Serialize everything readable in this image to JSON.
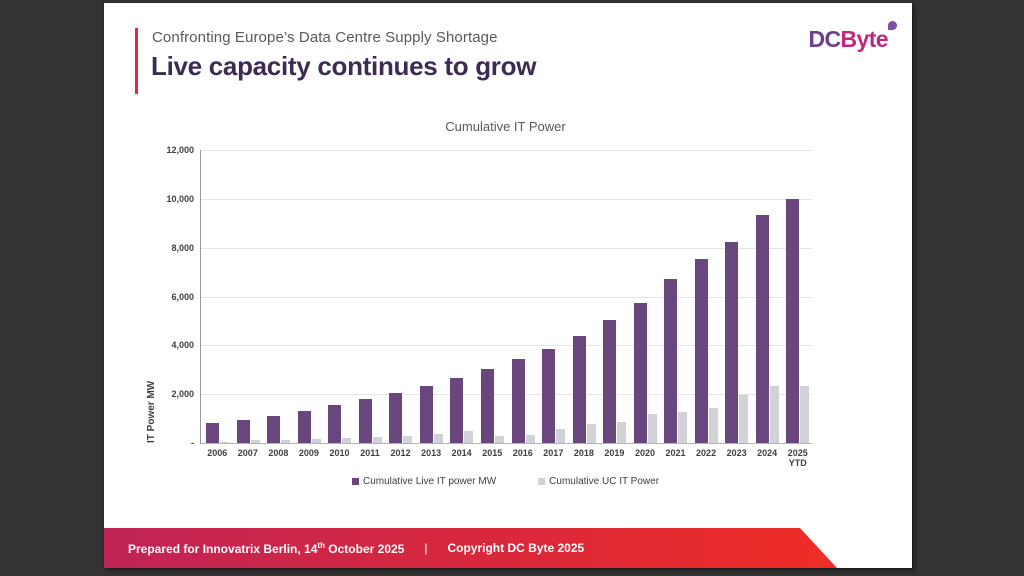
{
  "page": {
    "background": "#333333"
  },
  "header": {
    "eyebrow": "Confronting Europe’s Data Centre Supply Shortage",
    "title": "Live capacity continues to grow",
    "accent_color": "#EE2146"
  },
  "logo": {
    "part1": "DC",
    "part2": "Byte",
    "part1_color": "#6B3F92",
    "part2_color": "#C22780",
    "leaf_color": "#7E4FA0"
  },
  "chart_data": {
    "type": "bar",
    "title": "Cumulative IT Power",
    "xlabel": "",
    "ylabel": "IT Power MW",
    "ylim": [
      0,
      12000
    ],
    "ytick_step": 2000,
    "y_tick_labels": [
      "-",
      "2,000",
      "4,000",
      "6,000",
      "8,000",
      "10,000",
      "12,000"
    ],
    "grid": true,
    "legend_position": "bottom",
    "categories": [
      "2006",
      "2007",
      "2008",
      "2009",
      "2010",
      "2011",
      "2012",
      "2013",
      "2014",
      "2015",
      "2016",
      "2017",
      "2018",
      "2019",
      "2020",
      "2021",
      "2022",
      "2023",
      "2024",
      "2025\nYTD"
    ],
    "series": [
      {
        "name": "Cumulative Live IT power MW",
        "color": "#69467D",
        "values": [
          800,
          950,
          1100,
          1300,
          1550,
          1800,
          2050,
          2350,
          2650,
          3050,
          3450,
          3850,
          4400,
          5050,
          5750,
          6700,
          7550,
          8250,
          9350,
          10000
        ]
      },
      {
        "name": "Cumulative UC IT Power",
        "color": "#D2D1D6",
        "values": [
          60,
          120,
          140,
          180,
          200,
          250,
          280,
          380,
          480,
          300,
          330,
          570,
          790,
          880,
          1200,
          1270,
          1450,
          1950,
          2350,
          2350
        ]
      }
    ]
  },
  "footer": {
    "prepared_prefix": "Prepared for Innovatrix Berlin, 14",
    "prepared_sup": "th",
    "prepared_suffix": " October 2025",
    "separator": "|",
    "copyright": "Copyright DC Byte 2025",
    "gradient_left": "#C02355",
    "gradient_right": "#EF2D26"
  }
}
